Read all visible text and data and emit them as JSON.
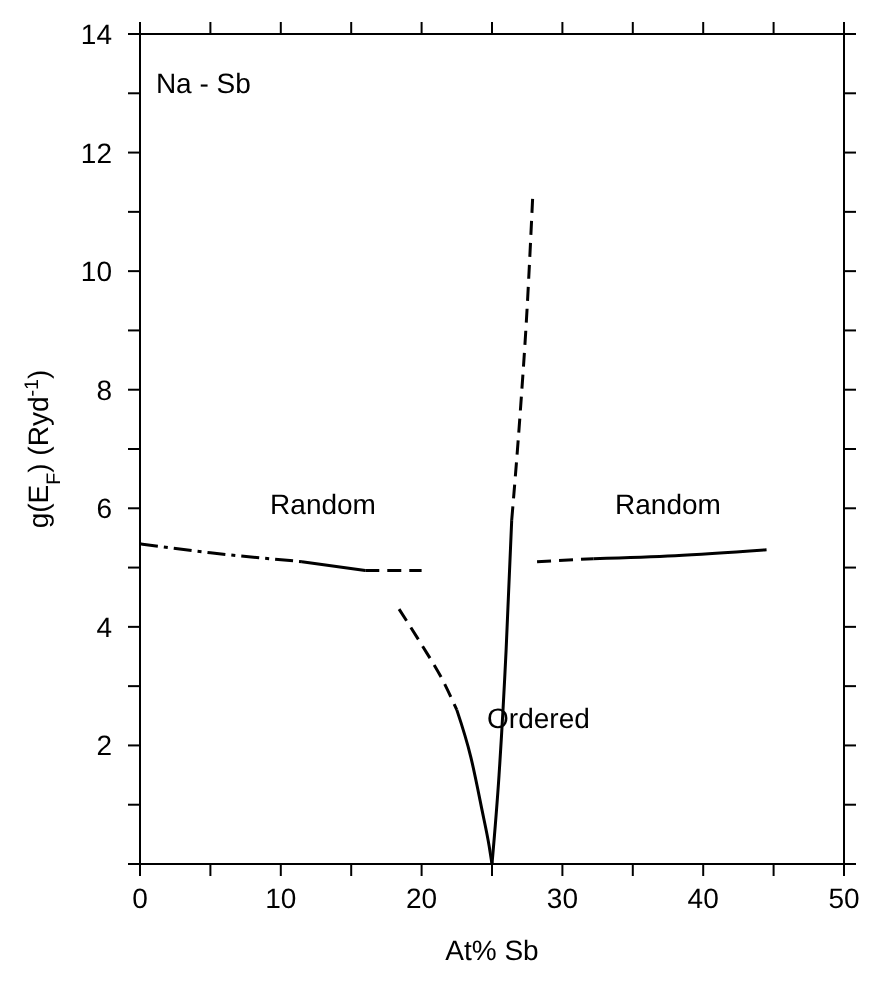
{
  "chart_data": {
    "type": "line",
    "xlabel": "At% Sb",
    "ylabel": "g(E$_{F}$) (Ryd$^{-1}$)",
    "xlim": [
      0,
      50
    ],
    "ylim": [
      0,
      14
    ],
    "xticks": [
      0,
      {
        "value": 5,
        "label": null
      },
      10,
      {
        "value": 15,
        "label": null
      },
      20,
      {
        "value": 25,
        "label": null
      },
      30,
      {
        "value": 35,
        "label": null
      },
      40,
      {
        "value": 45,
        "label": null
      },
      50
    ],
    "yticks": [
      {
        "value": 0,
        "label": null
      },
      {
        "value": 1,
        "label": null
      },
      2,
      {
        "value": 3,
        "label": null
      },
      4,
      {
        "value": 5,
        "label": null
      },
      6,
      {
        "value": 7,
        "label": null
      },
      8,
      {
        "value": 9,
        "label": null
      },
      10,
      {
        "value": 11,
        "label": null
      },
      12,
      {
        "value": 13,
        "label": null
      },
      14
    ],
    "marker": "none",
    "series": [
      {
        "color": "#000000",
        "line_style": "dashdot",
        "x": [
          0,
          5,
          11.5
        ],
        "values": [
          5.4,
          5.25,
          5.1
        ]
      },
      {
        "color": "#000000",
        "line_style": "solid",
        "x": [
          11.5,
          16
        ],
        "values": [
          5.1,
          4.95
        ]
      },
      {
        "color": "#000000",
        "line_style": "dashed",
        "x": [
          16,
          20
        ],
        "values": [
          4.95,
          4.95
        ]
      },
      {
        "color": "#000000",
        "line_style": "dashed",
        "x": [
          18.4,
          20,
          21.5,
          22.5
        ],
        "values": [
          4.3,
          3.7,
          3.1,
          2.6
        ]
      },
      {
        "color": "#000000",
        "line_style": "solid",
        "x": [
          22.5,
          23.5,
          24.3,
          24.8,
          25
        ],
        "values": [
          2.6,
          1.8,
          0.9,
          0.3,
          0
        ]
      },
      {
        "color": "#000000",
        "line_style": "solid",
        "x": [
          25,
          25.5,
          26,
          26.4
        ],
        "values": [
          0,
          1.5,
          3.6,
          5.8
        ]
      },
      {
        "color": "#000000",
        "line_style": "dashed",
        "x": [
          26.4,
          27,
          27.5,
          27.9
        ],
        "values": [
          5.8,
          7.6,
          9.4,
          11.3
        ]
      },
      {
        "color": "#000000",
        "line_style": "dashed",
        "x": [
          28.2,
          32.2
        ],
        "values": [
          5.1,
          5.15
        ]
      },
      {
        "color": "#000000",
        "line_style": "solid",
        "x": [
          32.2,
          38,
          44.5
        ],
        "values": [
          5.15,
          5.2,
          5.3
        ]
      }
    ],
    "annotations": [
      "Na - Sb",
      "Random",
      "Random",
      "Ordered"
    ]
  }
}
